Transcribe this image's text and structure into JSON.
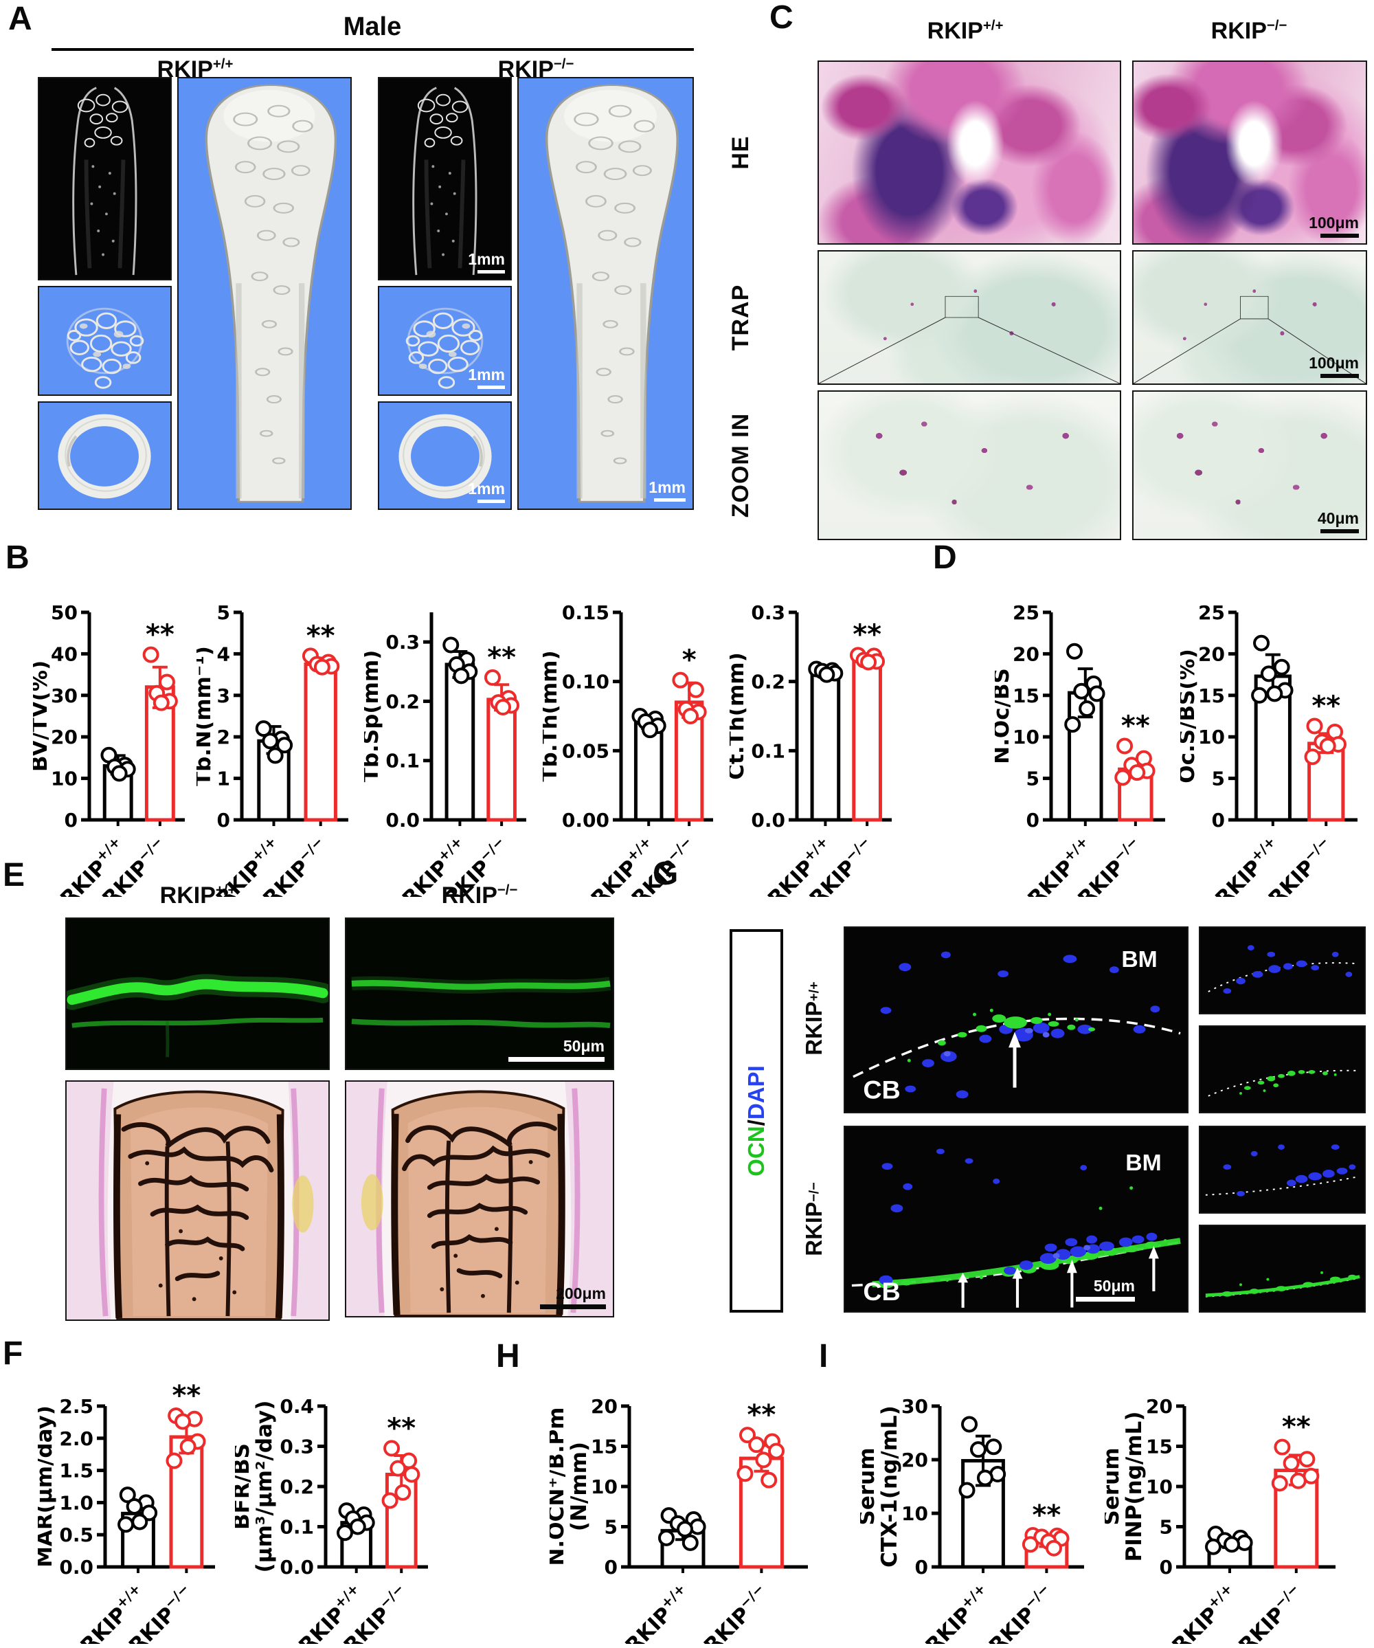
{
  "genotypes": {
    "wt": {
      "base": "RKIP",
      "sup": "+/+"
    },
    "ko": {
      "base": "RKIP",
      "sup": "−/−"
    }
  },
  "colors": {
    "accent_red": "#EE2B2B",
    "black": "#000000",
    "panel_blue": "#5E92F5",
    "calcein_green": "#2FE82F",
    "ocn_green": "#30DC30",
    "dapi_blue": "#2A35E8"
  },
  "panels": {
    "a": {
      "label": "A",
      "title": "Male",
      "scale": "1mm"
    },
    "b": {
      "label": "B"
    },
    "c": {
      "label": "C",
      "rows": [
        "HE",
        "TRAP",
        "ZOOM IN"
      ],
      "scale_he": "100μm",
      "scale_trap": "100μm",
      "scale_zoom": "40μm"
    },
    "d": {
      "label": "D"
    },
    "e": {
      "label": "E",
      "scale_calcein": "50μm",
      "scale_vonkossa": "200μm"
    },
    "f": {
      "label": "F"
    },
    "g": {
      "label": "G",
      "stain_green": "OCN",
      "stain_sep": "/",
      "stain_blue": "DAPI",
      "bm": "BM",
      "cb": "CB",
      "scale": "50μm"
    },
    "h": {
      "label": "H"
    },
    "i": {
      "label": "I"
    }
  },
  "chart_data": [
    {
      "id": "bvtv",
      "panel": "B",
      "type": "bar",
      "ylabel": [
        "BV/TV(%)"
      ],
      "ylim": [
        0,
        50
      ],
      "yticks": [
        0,
        10,
        20,
        30,
        40,
        50
      ],
      "ydec": 0,
      "categories": [
        "wt",
        "ko"
      ],
      "bars": [
        {
          "color": "black",
          "value": 13,
          "points": [
            15.6,
            13.2,
            12.8,
            12.2,
            11.2
          ],
          "err": [
            11,
            15.5
          ]
        },
        {
          "color": "red",
          "value": 32,
          "points": [
            39.8,
            33.2,
            30.5,
            28.6,
            28.2
          ],
          "err": [
            27,
            36.8
          ],
          "sig": "**"
        }
      ]
    },
    {
      "id": "tbn",
      "panel": "B",
      "type": "bar",
      "ylabel": [
        "Tb.N(mm⁻¹)"
      ],
      "ylim": [
        0,
        5
      ],
      "yticks": [
        0,
        1,
        2,
        3,
        4,
        5
      ],
      "ydec": 0,
      "categories": [
        "wt",
        "ko"
      ],
      "bars": [
        {
          "color": "black",
          "value": 1.9,
          "points": [
            2.2,
            1.95,
            1.9,
            1.8,
            1.55
          ],
          "err": [
            1.6,
            2.25
          ]
        },
        {
          "color": "red",
          "value": 3.75,
          "points": [
            3.95,
            3.8,
            3.75,
            3.7,
            3.68
          ],
          "err": [
            3.62,
            3.9
          ],
          "sig": "**"
        }
      ]
    },
    {
      "id": "tbsp",
      "panel": "B",
      "type": "bar",
      "ylabel": [
        "Tb.Sp(mm)"
      ],
      "ylim": [
        0,
        0.35
      ],
      "yticks": [
        0,
        0.1,
        0.2,
        0.3
      ],
      "ydec": 1,
      "categories": [
        "wt",
        "ko"
      ],
      "bars": [
        {
          "color": "black",
          "value": 0.262,
          "points": [
            0.295,
            0.27,
            0.262,
            0.25,
            0.243
          ],
          "err": [
            0.24,
            0.284
          ]
        },
        {
          "color": "red",
          "value": 0.203,
          "points": [
            0.24,
            0.205,
            0.198,
            0.193,
            0.19
          ],
          "err": [
            0.185,
            0.228
          ],
          "sig": "**"
        }
      ]
    },
    {
      "id": "tbth",
      "panel": "B",
      "type": "bar",
      "ylabel": [
        "Tb.Th(mm)"
      ],
      "ylim": [
        0,
        0.15
      ],
      "yticks": [
        0,
        0.05,
        0.1,
        0.15
      ],
      "ydec": 2,
      "categories": [
        "wt",
        "ko"
      ],
      "bars": [
        {
          "color": "black",
          "value": 0.07,
          "points": [
            0.075,
            0.073,
            0.071,
            0.068,
            0.065
          ],
          "err": [
            0.066,
            0.075
          ]
        },
        {
          "color": "red",
          "value": 0.085,
          "points": [
            0.101,
            0.094,
            0.08,
            0.078,
            0.075
          ],
          "err": [
            0.074,
            0.099
          ],
          "sig": "*"
        }
      ]
    },
    {
      "id": "ctth",
      "panel": "B",
      "type": "bar",
      "ylabel": [
        "Ct.Th(mm)"
      ],
      "ylim": [
        0,
        0.3
      ],
      "yticks": [
        0,
        0.1,
        0.2,
        0.3
      ],
      "ydec": 1,
      "categories": [
        "wt",
        "ko"
      ],
      "bars": [
        {
          "color": "black",
          "value": 0.215,
          "points": [
            0.218,
            0.216,
            0.215,
            0.212,
            0.21
          ],
          "err": [
            0.21,
            0.22
          ]
        },
        {
          "color": "red",
          "value": 0.233,
          "points": [
            0.238,
            0.237,
            0.231,
            0.229,
            0.228
          ],
          "err": [
            0.226,
            0.239
          ],
          "sig": "**"
        }
      ]
    },
    {
      "id": "nocbs",
      "panel": "D",
      "type": "bar",
      "ylabel": [
        "N.Oc/BS"
      ],
      "ylim": [
        0,
        25
      ],
      "yticks": [
        0,
        5,
        10,
        15,
        20,
        25
      ],
      "ydec": 0,
      "categories": [
        "wt",
        "ko"
      ],
      "bars": [
        {
          "color": "black",
          "value": 15.3,
          "points": [
            20.3,
            16.4,
            15.5,
            15.2,
            13.4,
            11.5
          ],
          "err": [
            12.4,
            18.2
          ]
        },
        {
          "color": "red",
          "value": 6.1,
          "points": [
            8.9,
            7.4,
            6.6,
            5.9,
            5.7,
            5.1
          ],
          "err": [
            5.1,
            7.2
          ],
          "sig": "**"
        }
      ]
    },
    {
      "id": "ocsbs",
      "panel": "D",
      "type": "bar",
      "ylabel": [
        "Oc.S/BS(%)"
      ],
      "ylim": [
        0,
        25
      ],
      "yticks": [
        0,
        5,
        10,
        15,
        20,
        25
      ],
      "ydec": 0,
      "categories": [
        "wt",
        "ko"
      ],
      "bars": [
        {
          "color": "black",
          "value": 17.3,
          "points": [
            21.3,
            18.4,
            17.6,
            15.6,
            15.2,
            15.0
          ],
          "err": [
            15.1,
            19.9
          ]
        },
        {
          "color": "red",
          "value": 9.2,
          "points": [
            11.3,
            10.6,
            9.4,
            9.1,
            8.9,
            7.6
          ],
          "err": [
            8.1,
            10.4
          ],
          "sig": "**"
        }
      ]
    },
    {
      "id": "mar",
      "panel": "F",
      "type": "bar",
      "ylabel": [
        "MAR(μm/day)"
      ],
      "ylim": [
        0,
        2.5
      ],
      "yticks": [
        0,
        0.5,
        1,
        1.5,
        2,
        2.5
      ],
      "ydec": 1,
      "categories": [
        "wt",
        "ko"
      ],
      "bars": [
        {
          "color": "black",
          "value": 0.83,
          "points": [
            1.12,
            1.0,
            0.94,
            0.84,
            0.7,
            0.66
          ],
          "err": [
            0.66,
            1.0
          ]
        },
        {
          "color": "red",
          "value": 2.02,
          "points": [
            2.35,
            2.3,
            2.26,
            1.95,
            1.87,
            1.65
          ],
          "err": [
            1.77,
            2.28
          ],
          "sig": "**"
        }
      ]
    },
    {
      "id": "bfr",
      "panel": "F",
      "type": "bar",
      "ylabel": [
        "BFR/BS",
        "(μm³/μm²/day)"
      ],
      "ylim": [
        0,
        0.4
      ],
      "yticks": [
        0,
        0.1,
        0.2,
        0.3,
        0.4
      ],
      "ydec": 1,
      "categories": [
        "wt",
        "ko"
      ],
      "bars": [
        {
          "color": "black",
          "value": 0.11,
          "points": [
            0.14,
            0.13,
            0.12,
            0.11,
            0.1,
            0.085
          ],
          "err": [
            0.093,
            0.127
          ]
        },
        {
          "color": "red",
          "value": 0.23,
          "points": [
            0.295,
            0.264,
            0.245,
            0.23,
            0.185,
            0.165
          ],
          "err": [
            0.173,
            0.277
          ],
          "sig": "**"
        }
      ]
    },
    {
      "id": "nocn",
      "panel": "H",
      "type": "bar",
      "ylabel": [
        "N.OCN⁺/B.Pm",
        "(N/mm)"
      ],
      "ylim": [
        0,
        20
      ],
      "yticks": [
        0,
        5,
        10,
        15,
        20
      ],
      "ydec": 0,
      "categories": [
        "wt",
        "ko"
      ],
      "bars": [
        {
          "color": "black",
          "value": 4.5,
          "points": [
            6.4,
            5.9,
            5.4,
            5.0,
            4.7,
            3.6,
            3.0
          ],
          "err": [
            3.4,
            5.6
          ]
        },
        {
          "color": "red",
          "value": 13.5,
          "points": [
            16.4,
            15.6,
            15.2,
            14.4,
            13.3,
            11.6,
            10.8
          ],
          "err": [
            11.9,
            15.1
          ],
          "sig": "**"
        }
      ]
    },
    {
      "id": "ctx",
      "panel": "I",
      "type": "bar",
      "ylabel": [
        "Serum",
        "CTX-1(ng/mL)"
      ],
      "ylim": [
        0,
        30
      ],
      "yticks": [
        0,
        10,
        20,
        30
      ],
      "ydec": 0,
      "categories": [
        "wt",
        "ko"
      ],
      "bars": [
        {
          "color": "black",
          "value": 19.8,
          "points": [
            26.6,
            22.4,
            21.9,
            17.3,
            16.6,
            14.3
          ],
          "err": [
            15.2,
            24.4
          ]
        },
        {
          "color": "red",
          "value": 4.6,
          "points": [
            5.9,
            5.8,
            5.6,
            5.3,
            4.7,
            4.2,
            3.5
          ],
          "err": [
            3.8,
            5.7
          ],
          "sig": "**"
        }
      ]
    },
    {
      "id": "pinp",
      "panel": "I",
      "type": "bar",
      "ylabel": [
        "Serum",
        "PINP(ng/mL)"
      ],
      "ylim": [
        0,
        20
      ],
      "yticks": [
        0,
        5,
        10,
        15,
        20
      ],
      "ydec": 0,
      "categories": [
        "wt",
        "ko"
      ],
      "bars": [
        {
          "color": "black",
          "value": 2.9,
          "points": [
            4.1,
            3.6,
            3.3,
            3.0,
            2.8,
            2.5
          ],
          "err": [
            2.4,
            3.5
          ]
        },
        {
          "color": "red",
          "value": 12.0,
          "points": [
            14.9,
            13.4,
            12.9,
            11.3,
            10.7,
            10.4
          ],
          "err": [
            10.2,
            13.9
          ],
          "sig": "**"
        }
      ]
    }
  ]
}
